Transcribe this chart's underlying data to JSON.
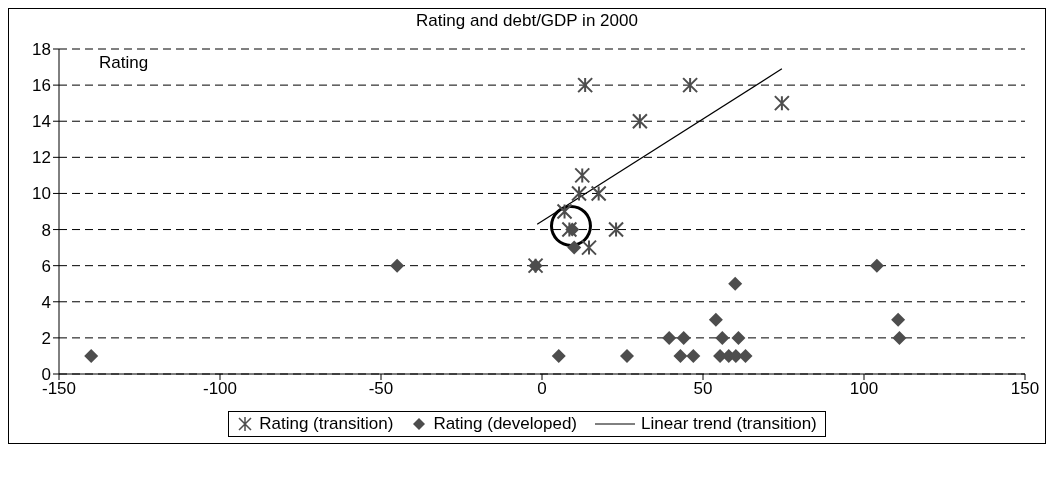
{
  "chart_data": {
    "type": "scatter",
    "title": "Rating and debt/GDP in 2000",
    "ylabel": "Rating",
    "xlim": [
      -150,
      150
    ],
    "xticks": [
      -150,
      -100,
      -50,
      0,
      50,
      100,
      150
    ],
    "ylim": [
      0,
      18
    ],
    "yticks": [
      0,
      2,
      4,
      6,
      8,
      10,
      12,
      14,
      16,
      18
    ],
    "grid": "y",
    "legend": "bottom",
    "series": [
      {
        "name": "Rating (transition)",
        "marker": "cross",
        "color": "#4d4d4d",
        "x": [
          13.4,
          46,
          30.4,
          74.5,
          12.5,
          11.5,
          17.6,
          23,
          7,
          8.5,
          14.6,
          -2
        ],
        "values": [
          16,
          16,
          14,
          15,
          11,
          10,
          10,
          8,
          9,
          8,
          7,
          6
        ]
      },
      {
        "name": "Rating (developed)",
        "marker": "diamond",
        "color": "#4d4d4d",
        "x": [
          -140,
          -45,
          -2,
          9.4,
          10,
          5.2,
          26.4,
          39.5,
          44,
          43,
          47,
          54,
          56,
          61,
          60,
          55.3,
          58,
          60.2,
          63.2,
          104,
          110.6,
          111
        ],
        "values": [
          1,
          6,
          6,
          8,
          7,
          1,
          1,
          2,
          2,
          1,
          1,
          3,
          2,
          2,
          5,
          1,
          1,
          1,
          1,
          6,
          3,
          2
        ]
      },
      {
        "name": "Linear trend (transition)",
        "type": "line",
        "marker": "none",
        "color": "#000000",
        "x": [
          -1.5,
          74.5
        ],
        "values": [
          8.3,
          16.9
        ]
      }
    ]
  }
}
